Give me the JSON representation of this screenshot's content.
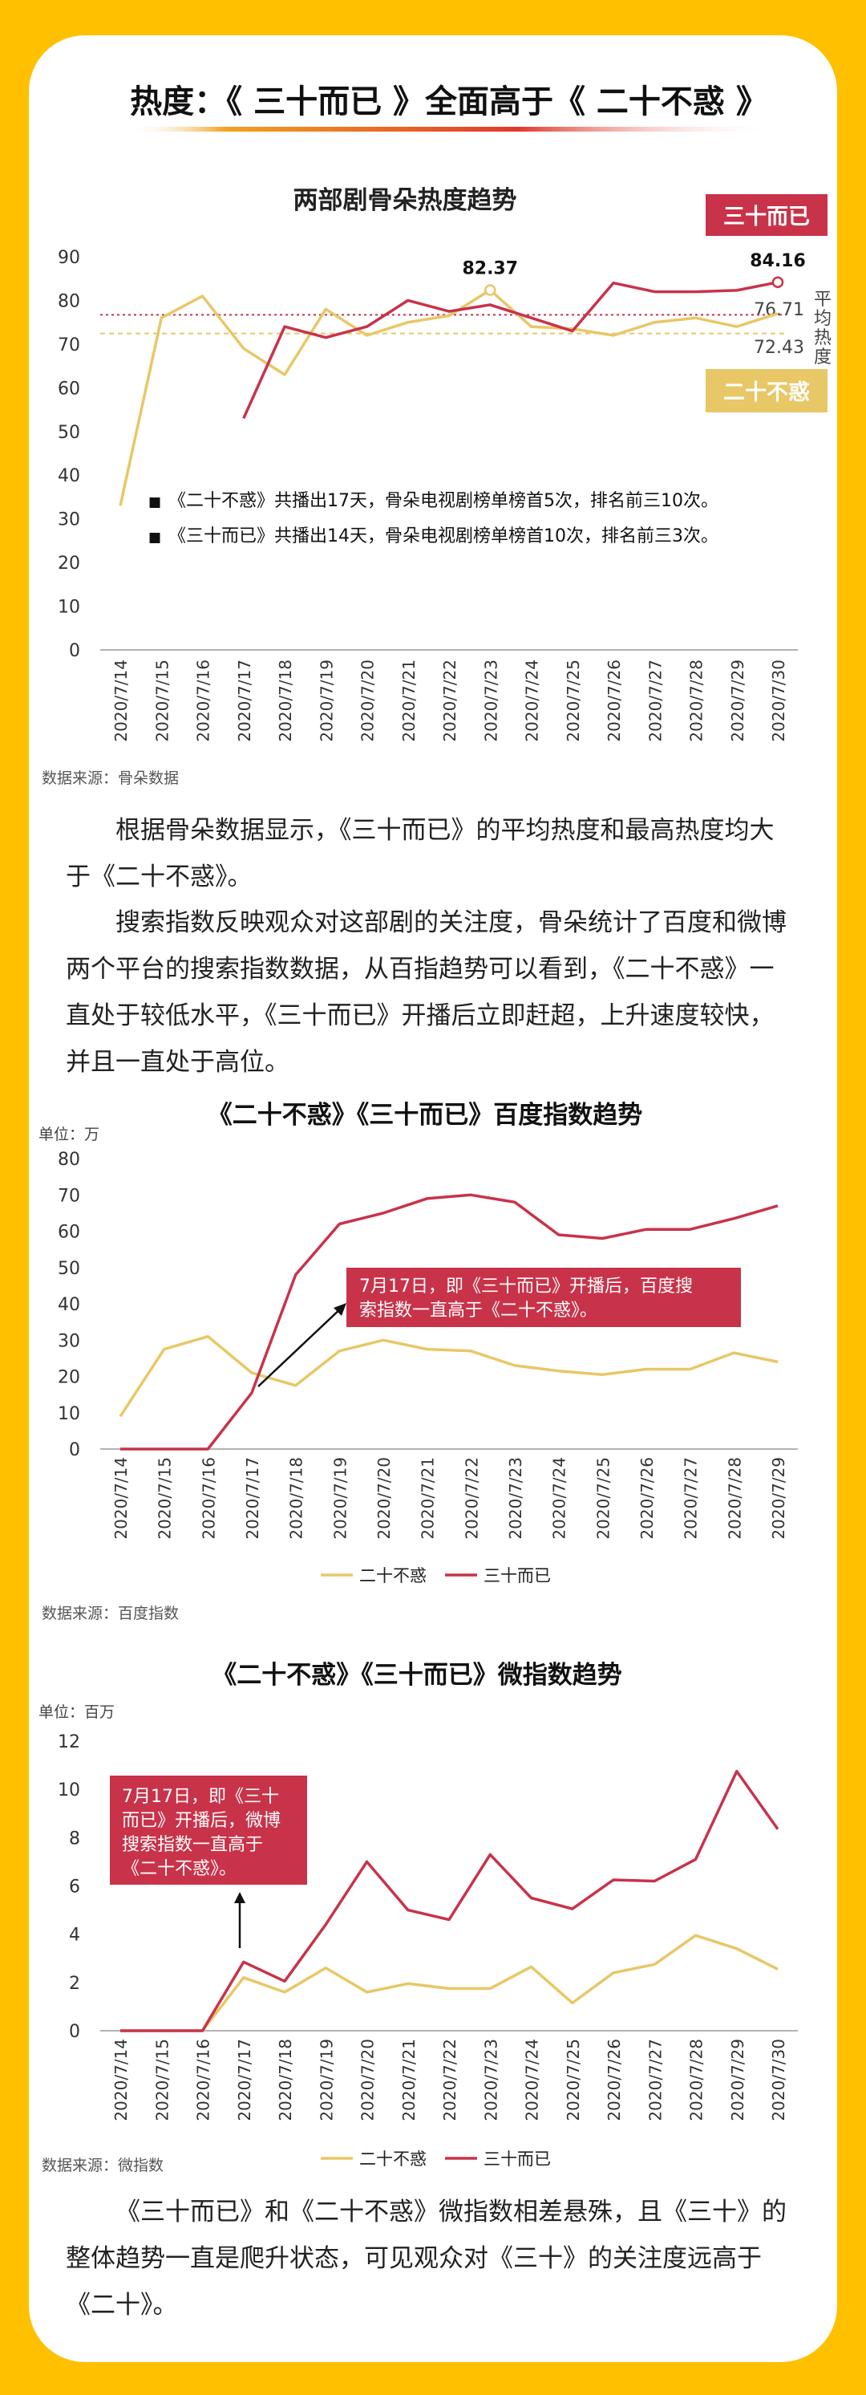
{
  "header": {
    "title": "热度：《 三十而已 》全面高于《 二十不惑 》"
  },
  "colors": {
    "page_bg": "#FFC000",
    "red": "#C8334A",
    "gold": "#E8C766",
    "avg_red": "#C8334A",
    "avg_gold": "#E8C766"
  },
  "charts": [
    {
      "chart_data": {
        "type": "line",
        "title": "两部剧骨朵热度趋势",
        "x": [
          "2020/7/14",
          "2020/7/15",
          "2020/7/16",
          "2020/7/17",
          "2020/7/18",
          "2020/7/19",
          "2020/7/20",
          "2020/7/21",
          "2020/7/22",
          "2020/7/23",
          "2020/7/24",
          "2020/7/25",
          "2020/7/26",
          "2020/7/27",
          "2020/7/28",
          "2020/7/29",
          "2020/7/30"
        ],
        "ylim": [
          0,
          90
        ],
        "yticks": [
          0,
          10,
          20,
          30,
          40,
          50,
          60,
          70,
          80,
          90
        ],
        "series": [
          {
            "name": "二十不惑",
            "color": "#E8C766",
            "values": [
              33,
              76,
              81,
              69,
              63,
              78,
              72,
              75,
              76.5,
              82.37,
              74,
              73.5,
              72,
              75,
              76,
              74,
              77
            ]
          },
          {
            "name": "三十而已",
            "color": "#C8334A",
            "values": [
              null,
              null,
              null,
              53,
              74,
              71.5,
              74,
              80,
              77.5,
              79,
              76,
              73,
              84,
              82,
              82,
              82.3,
              84.16
            ]
          }
        ],
        "averages": {
          "三十而已": "76.71",
          "二十不惑": "72.43",
          "avg_values": [
            76.71,
            72.43
          ],
          "avg_label": [
            "平",
            "均",
            "热",
            "度"
          ]
        },
        "data_labels": {
          "peak_gold": "82.37",
          "peak_red": "84.16"
        },
        "legend_boxes": {
          "red": "三十而已",
          "gold": "二十不惑"
        },
        "notes": [
          "《二十不惑》共播出17天，骨朵电视剧榜单榜首5次，排名前三10次。",
          "《三十而已》共播出14天，骨朵电视剧榜单榜首10次，排名前三3次。"
        ],
        "note_bullet": "■",
        "grid": false
      },
      "source": "数据来源：骨朵数据"
    },
    {
      "chart_data": {
        "type": "line",
        "title": "《二十不惑》《三十而已》百度指数趋势",
        "unit": "单位：万",
        "x": [
          "2020/7/14",
          "2020/7/15",
          "2020/7/16",
          "2020/7/17",
          "2020/7/18",
          "2020/7/19",
          "2020/7/20",
          "2020/7/21",
          "2020/7/22",
          "2020/7/23",
          "2020/7/24",
          "2020/7/25",
          "2020/7/26",
          "2020/7/27",
          "2020/7/28",
          "2020/7/29"
        ],
        "ylim": [
          0,
          80
        ],
        "yticks": [
          0,
          10,
          20,
          30,
          40,
          50,
          60,
          70,
          80
        ],
        "series": [
          {
            "name": "二十不惑",
            "color": "#E8C766",
            "values": [
              9,
              27.5,
              31,
              21,
              17.5,
              27,
              30,
              27.5,
              27,
              23,
              21.5,
              20.5,
              22,
              22,
              26.5,
              24
            ]
          },
          {
            "name": "三十而已",
            "color": "#C8334A",
            "values": [
              0,
              0,
              0,
              15.5,
              48,
              62,
              65,
              69,
              70,
              68,
              59,
              58,
              60.5,
              60.5,
              63.5,
              67
            ]
          }
        ],
        "annotation": "7月17日，即《三十而已》开播后，百度搜索指数一直高于《二十不惑》。",
        "legend": "bottom",
        "grid": false
      },
      "source": "数据来源：百度指数"
    },
    {
      "chart_data": {
        "type": "line",
        "title": "《二十不惑》《三十而已》微指数趋势",
        "unit": "单位：百万",
        "x": [
          "2020/7/14",
          "2020/7/15",
          "2020/7/16",
          "2020/7/17",
          "2020/7/18",
          "2020/7/19",
          "2020/7/20",
          "2020/7/21",
          "2020/7/22",
          "2020/7/23",
          "2020/7/24",
          "2020/7/25",
          "2020/7/26",
          "2020/7/27",
          "2020/7/28",
          "2020/7/29",
          "2020/7/30"
        ],
        "ylim": [
          0,
          12
        ],
        "yticks": [
          0,
          2,
          4,
          6,
          8,
          10,
          12
        ],
        "series": [
          {
            "name": "二十不惑",
            "color": "#E8C766",
            "values": [
              0,
              0,
              0,
              2.2,
              1.6,
              2.6,
              1.6,
              1.95,
              1.75,
              1.75,
              2.65,
              1.15,
              2.4,
              2.75,
              3.95,
              3.4,
              2.55
            ]
          },
          {
            "name": "三十而已",
            "color": "#C8334A",
            "values": [
              0,
              0,
              0,
              2.85,
              2.05,
              4.4,
              7,
              5,
              4.6,
              7.3,
              5.5,
              5.05,
              6.25,
              6.2,
              7.1,
              10.75,
              8.35
            ]
          }
        ],
        "annotation": "7月17日，即《三十而已》开播后，微博搜索指数一直高于《二十不惑》。",
        "annotation_lines": [
          "7月17日，即《三十",
          "而已》开播后，微博",
          "搜索指数一直高于",
          "《二十不惑》。"
        ],
        "legend": "bottom",
        "grid": false
      },
      "source": "数据来源：微指数"
    }
  ],
  "paragraphs": {
    "p1": [
      "根据骨朵数据显示，《三十而已》的平均热度和最高热度均大",
      "于《二十不惑》。"
    ],
    "p2": [
      "搜索指数反映观众对这部剧的关注度，骨朵统计了百度和微博",
      "两个平台的搜索指数数据，从百指趋势可以看到，《二十不惑》一",
      "直处于较低水平，《三十而已》开播后立即赶超，上升速度较快，",
      "并且一直处于高位。"
    ],
    "p3": [
      "《三十而已》和《二十不惑》微指数相差悬殊，且《三十》的",
      "整体趋势一直是爬升状态，可见观众对《三十》的关注度远高于",
      "《二十》。"
    ]
  }
}
